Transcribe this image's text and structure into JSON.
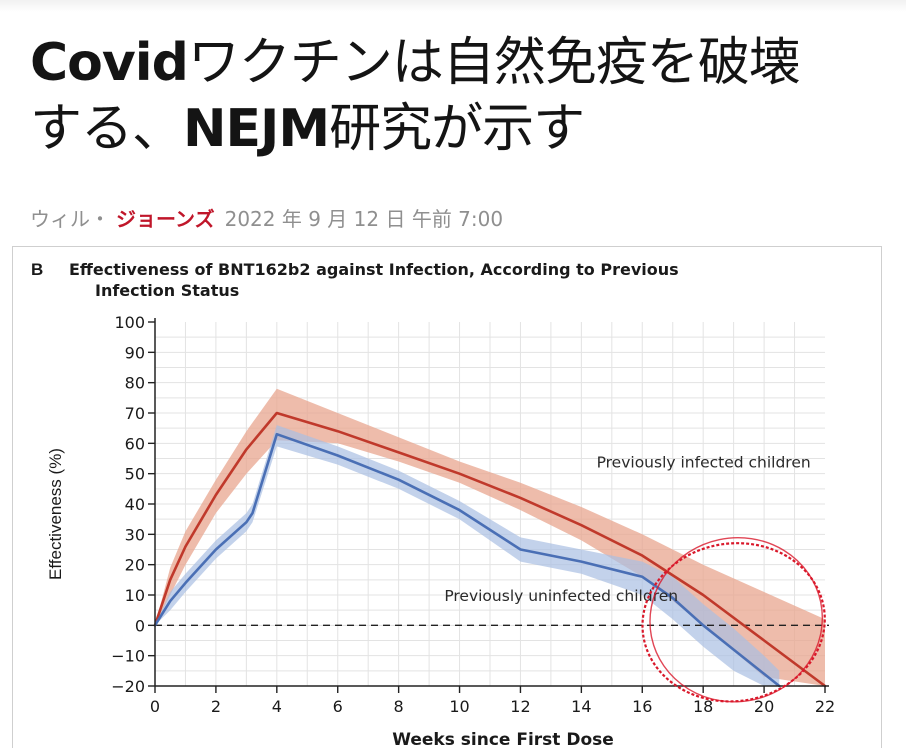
{
  "article": {
    "headline_en1": "Covid",
    "headline_jp1": "ワクチンは自然免疫を破壊",
    "headline_jp2": "する、",
    "headline_en2": "NEJM",
    "headline_jp3": "研究が示す",
    "author_prefix": "ウィル・",
    "author_name": "ジョーンズ",
    "date": "2022 年 9 月 12 日 午前 7:00"
  },
  "colors": {
    "infected_line": "#c0392b",
    "infected_band": "#e8a58f",
    "uninfected_line": "#4a6fb5",
    "uninfected_band": "#a9bfe3",
    "annotation": "#d9182a"
  },
  "chart_data": {
    "type": "line",
    "panel_label": "B",
    "title": "Effectiveness of BNT162b2 against Infection, According to Previous Infection Status",
    "title_line1": "Effectiveness of BNT162b2 against Infection, According to Previous",
    "title_line2": "Infection Status",
    "xlabel": "Weeks since First Dose",
    "ylabel": "Effectiveness (%)",
    "xlim": [
      0,
      22
    ],
    "ylim": [
      -20,
      100
    ],
    "xticks": [
      0,
      2,
      4,
      6,
      8,
      10,
      12,
      14,
      16,
      18,
      20,
      22
    ],
    "yticks": [
      -20,
      -10,
      0,
      10,
      20,
      30,
      40,
      50,
      60,
      70,
      80,
      90,
      100
    ],
    "grid": true,
    "reference_line": 0,
    "series": [
      {
        "name": "Previously infected children",
        "x": [
          0,
          0.5,
          1,
          2,
          3,
          4,
          6,
          8,
          10,
          12,
          14,
          16,
          18,
          20,
          22
        ],
        "y": [
          0,
          15,
          26,
          43,
          58,
          70,
          64,
          57,
          50,
          42,
          33,
          23,
          10,
          -5,
          -20
        ],
        "lower": [
          0,
          10,
          20,
          37,
          50,
          61,
          60,
          54,
          47,
          38,
          28,
          16,
          0,
          -17,
          -20
        ],
        "upper": [
          0,
          19,
          31,
          48,
          64,
          78,
          70,
          62,
          54,
          47,
          39,
          30,
          20,
          11,
          2
        ]
      },
      {
        "name": "Previously uninfected children",
        "x": [
          0,
          0.5,
          1,
          2,
          3,
          3.2,
          4,
          6,
          8,
          10,
          12,
          14,
          16,
          17,
          18,
          19,
          20,
          20.5
        ],
        "y": [
          0,
          8,
          14,
          25,
          34,
          37,
          63,
          56,
          48,
          38,
          25,
          21,
          16,
          9,
          0,
          -8,
          -16,
          -20
        ],
        "lower": [
          0,
          5,
          11,
          22,
          31,
          34,
          59,
          53,
          45,
          35,
          21,
          17,
          10,
          2,
          -7,
          -15,
          -20,
          -20
        ],
        "upper": [
          0,
          11,
          17,
          28,
          37,
          40,
          66,
          59,
          51,
          41,
          29,
          25,
          21,
          16,
          7,
          -1,
          -10,
          -15
        ]
      }
    ],
    "annotations": [
      {
        "text": "Previously infected children",
        "x": 14.5,
        "y": 52
      },
      {
        "text": "Previously uninfected children",
        "x": 9.5,
        "y": 8
      },
      {
        "shape": "circle",
        "cx": 19,
        "cy": 1,
        "rx": 3.0,
        "ry": 26
      }
    ]
  }
}
